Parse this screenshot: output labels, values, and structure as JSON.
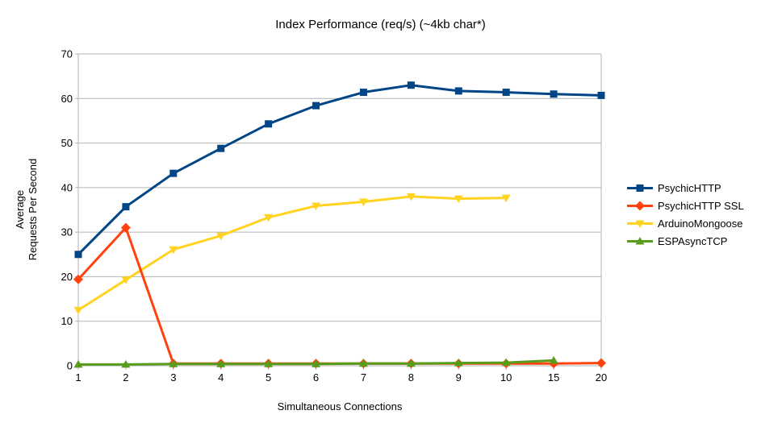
{
  "chart_data": {
    "type": "line",
    "title": "Index Performance (req/s) (~4kb char*)",
    "xlabel": "Simultaneous Connections",
    "ylabel": "Average Requests Per Second",
    "ylabel_lines": [
      "Average",
      "Requests Per Second"
    ],
    "categories": [
      "1",
      "2",
      "3",
      "4",
      "5",
      "6",
      "7",
      "8",
      "9",
      "10",
      "15",
      "20"
    ],
    "yticks": [
      0,
      10,
      20,
      30,
      40,
      50,
      60,
      70
    ],
    "ylim": [
      0,
      70
    ],
    "grid": true,
    "legend_position": "right",
    "axis_color": "#b3b3b3",
    "text_color": "#000000",
    "background_color": "#ffffff",
    "series": [
      {
        "name": "PsychicHTTP",
        "color": "#004586",
        "marker": "square",
        "values": [
          25.0,
          35.7,
          43.2,
          48.8,
          54.3,
          58.4,
          61.4,
          63.0,
          61.7,
          61.4,
          61.0,
          60.7
        ]
      },
      {
        "name": "PsychicHTTP SSL",
        "color": "#FF420E",
        "marker": "diamond",
        "values": [
          19.4,
          31.0,
          0.5,
          0.5,
          0.5,
          0.5,
          0.5,
          0.5,
          0.5,
          0.5,
          0.5,
          0.6
        ]
      },
      {
        "name": "ArduinoMongoose",
        "color": "#FFD320",
        "marker": "triangle-down",
        "values": [
          12.5,
          19.3,
          26.1,
          29.2,
          33.3,
          35.9,
          36.8,
          38.0,
          37.5,
          37.7,
          null,
          null
        ]
      },
      {
        "name": "ESPAsyncTCP",
        "color": "#579D1C",
        "marker": "triangle-up",
        "values": [
          0.3,
          0.3,
          0.4,
          0.4,
          0.4,
          0.4,
          0.5,
          0.5,
          0.6,
          0.7,
          1.2,
          null
        ]
      }
    ]
  }
}
